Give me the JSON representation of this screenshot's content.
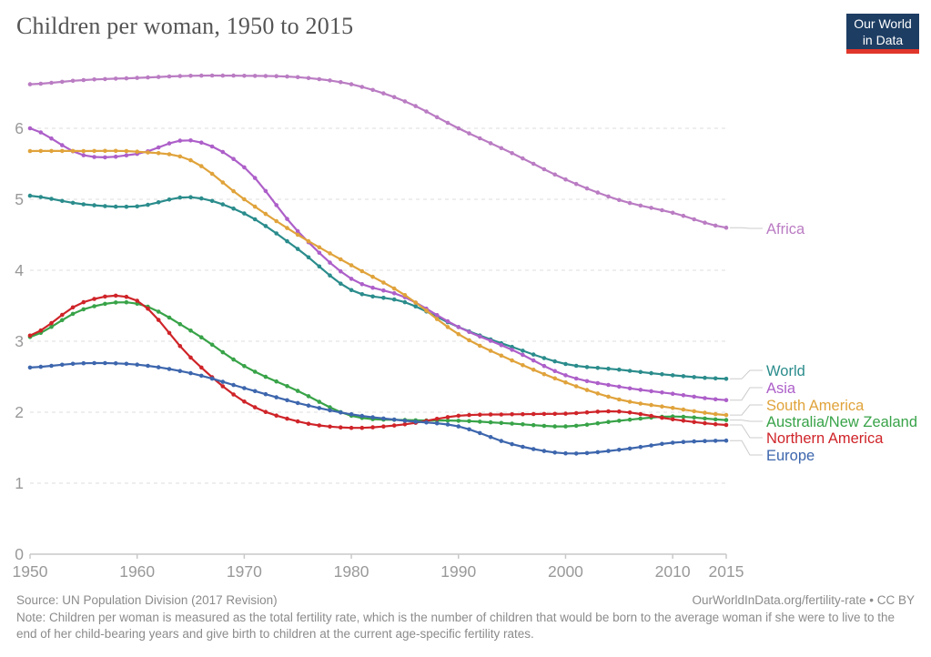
{
  "header": {
    "title": "Children per woman, 1950 to 2015",
    "logo": {
      "line1": "Our World",
      "line2": "in Data"
    }
  },
  "chart_data": {
    "type": "line",
    "title": "Children per woman, 1950 to 2015",
    "xlabel": "",
    "ylabel": "",
    "x": [
      1950,
      1955,
      1960,
      1965,
      1970,
      1975,
      1980,
      1985,
      1990,
      1995,
      2000,
      2005,
      2010,
      2015
    ],
    "series": [
      {
        "name": "Africa",
        "color": "#ba7cc3",
        "values": [
          6.62,
          6.68,
          6.71,
          6.74,
          6.74,
          6.72,
          6.62,
          6.38,
          6.0,
          5.65,
          5.28,
          4.99,
          4.81,
          4.6
        ]
      },
      {
        "name": "World",
        "color": "#2b8c8c",
        "values": [
          5.05,
          4.93,
          4.9,
          5.03,
          4.8,
          4.3,
          3.72,
          3.55,
          3.2,
          2.92,
          2.68,
          2.6,
          2.52,
          2.47
        ]
      },
      {
        "name": "Asia",
        "color": "#ad5fc9",
        "values": [
          6.0,
          5.62,
          5.64,
          5.83,
          5.45,
          4.55,
          3.88,
          3.62,
          3.2,
          2.88,
          2.52,
          2.36,
          2.26,
          2.17
        ]
      },
      {
        "name": "South America",
        "color": "#e0a33b",
        "values": [
          5.68,
          5.68,
          5.67,
          5.55,
          5.0,
          4.5,
          4.07,
          3.65,
          3.1,
          2.73,
          2.42,
          2.18,
          2.06,
          1.96
        ]
      },
      {
        "name": "Australia/New Zealand",
        "color": "#38a348",
        "values": [
          3.06,
          3.45,
          3.53,
          3.15,
          2.65,
          2.3,
          1.95,
          1.89,
          1.88,
          1.84,
          1.8,
          1.88,
          1.94,
          1.89
        ]
      },
      {
        "name": "Northern America",
        "color": "#cf2429",
        "values": [
          3.08,
          3.55,
          3.57,
          2.77,
          2.15,
          1.87,
          1.78,
          1.83,
          1.95,
          1.97,
          1.98,
          2.01,
          1.9,
          1.82
        ]
      },
      {
        "name": "Europe",
        "color": "#3d66ad",
        "values": [
          2.63,
          2.69,
          2.67,
          2.55,
          2.34,
          2.13,
          1.97,
          1.88,
          1.8,
          1.55,
          1.42,
          1.47,
          1.57,
          1.6
        ]
      }
    ],
    "ylim": [
      0,
      7
    ],
    "yticks": [
      0,
      1,
      2,
      3,
      4,
      5,
      6
    ],
    "xticks": [
      1950,
      1960,
      1970,
      1980,
      1990,
      2000,
      2010,
      2015
    ],
    "grid": true,
    "legend_position": "right-edge-labels",
    "markers": "yearly dots interpolated between 5-year values"
  },
  "footer": {
    "source": "Source: UN Population Division (2017 Revision)",
    "attribution": "OurWorldInData.org/fertility-rate • CC BY",
    "note": "Note: Children per woman is measured as the total fertility rate, which is the number of children that would be born to the average woman if she were to live to the end of her child-bearing years and give birth to children at the current age-specific fertility rates."
  },
  "colors": {
    "title_text": "#555555",
    "tick_text": "#999999",
    "gridline": "#dddddd",
    "axis_line": "#c8c8c8",
    "connector": "#cccccc",
    "footer_text": "#8b8b8b",
    "logo_bg": "#1d3d63",
    "logo_red": "#e0362b"
  }
}
